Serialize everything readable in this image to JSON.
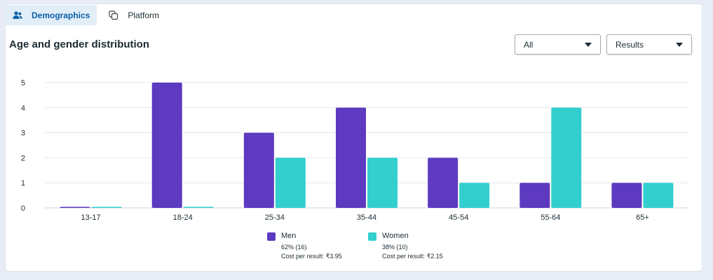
{
  "tabs": [
    {
      "label": "Demographics",
      "icon": "people-icon",
      "active": true
    },
    {
      "label": "Platform",
      "icon": "copy-icon",
      "active": false
    }
  ],
  "section": {
    "title": "Age and gender distribution"
  },
  "filters": {
    "audience_select": {
      "value": "All"
    },
    "metric_select": {
      "value": "Results"
    }
  },
  "colors": {
    "men": "#5d3ac0",
    "women": "#33cfcf",
    "grid": "#e4e6eb",
    "tab_active_bg": "#e1edf7",
    "tab_active_text": "#0a5fa8"
  },
  "chart_data": {
    "type": "bar",
    "categories": [
      "13-17",
      "18-24",
      "25-34",
      "35-44",
      "45-54",
      "55-64",
      "65+"
    ],
    "series": [
      {
        "name": "Men",
        "values": [
          0,
          5,
          3,
          4,
          2,
          1,
          1
        ]
      },
      {
        "name": "Women",
        "values": [
          0,
          0,
          2,
          2,
          1,
          4,
          1
        ]
      }
    ],
    "yticks": [
      "0",
      "1",
      "2",
      "3",
      "4",
      "5"
    ],
    "ylim": [
      0,
      5
    ],
    "grid": true,
    "legend_placement": "bottom-center"
  },
  "legend": [
    {
      "name": "Men",
      "pct": "62% (16)",
      "cost": "Cost per result: ₹3.95"
    },
    {
      "name": "Women",
      "pct": "38% (10)",
      "cost": "Cost per result: ₹2.15"
    }
  ]
}
